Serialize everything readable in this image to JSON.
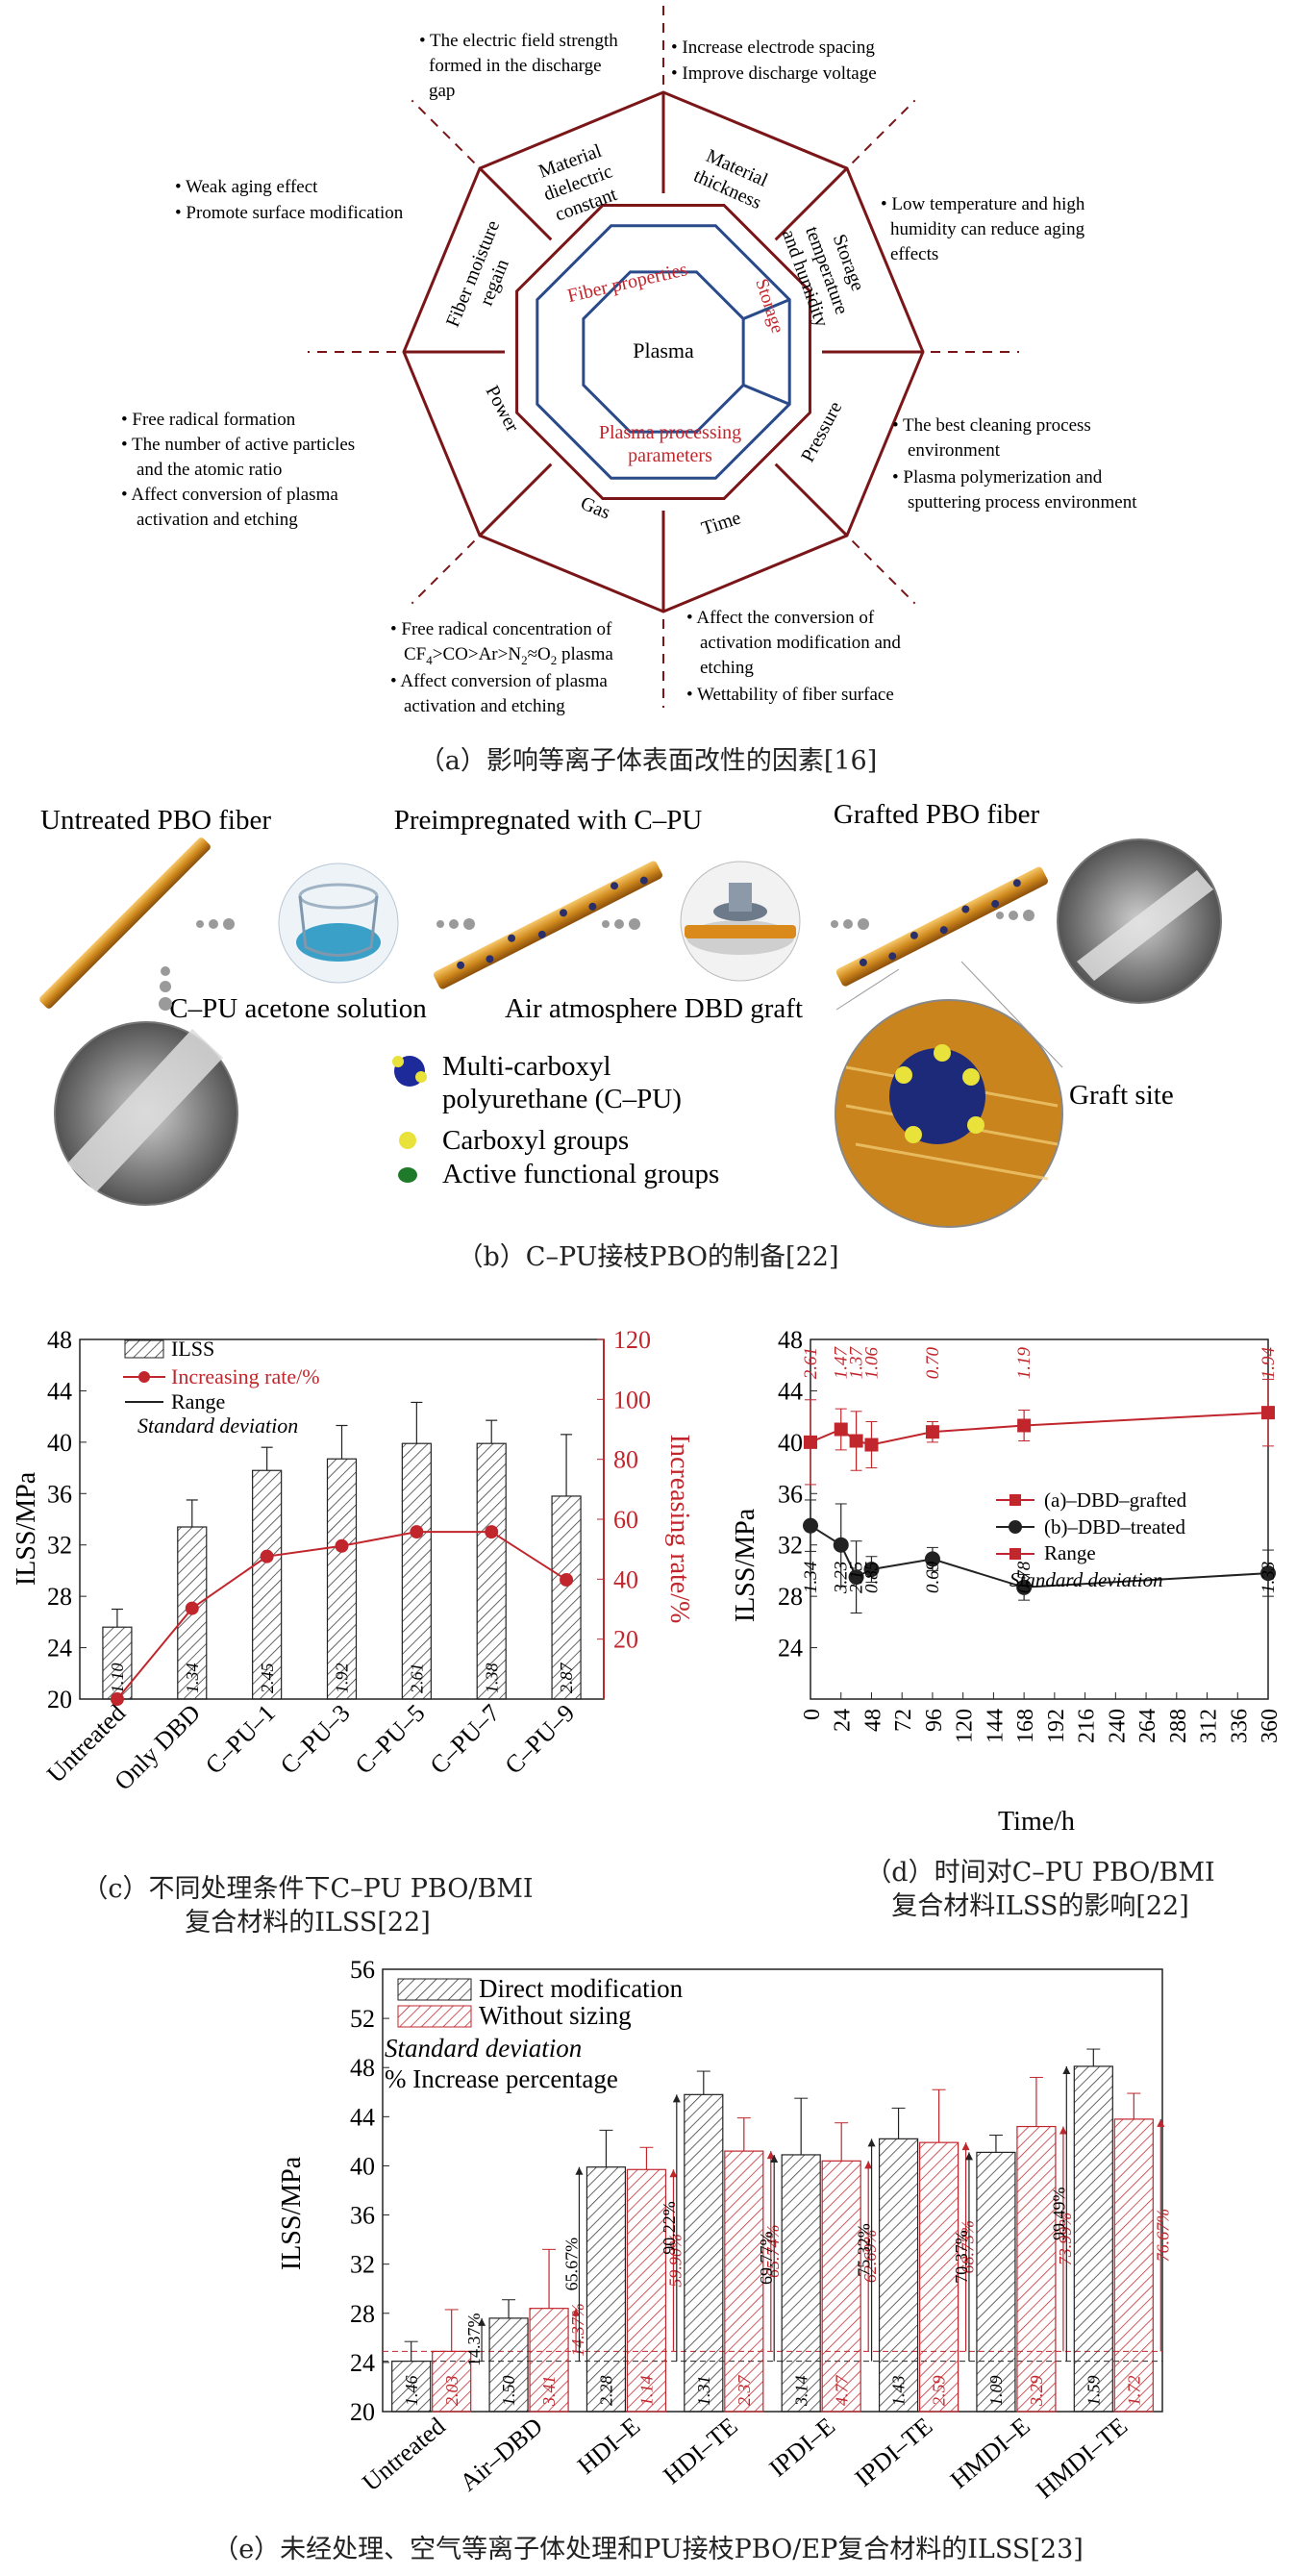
{
  "panel_a": {
    "caption": "（a）影响等离子体表面改性的因素[16]",
    "center": "Plasma",
    "inner_labels": [
      "Fiber properties",
      "Storage",
      "Plasma processing parameters"
    ],
    "segments": [
      "Material dielectric constant",
      "Material thickness",
      "Storage temperature and humidity",
      "Pressure",
      "Time",
      "Gas",
      "Power",
      "Fiber moisture regain"
    ],
    "notes": {
      "top_left": [
        "The electric field strength formed in the discharge gap"
      ],
      "top_right": [
        "Increase electrode spacing",
        "Improve discharge voltage"
      ],
      "right_top": [
        "Low temperature and high humidity can reduce aging effects"
      ],
      "right_bottom": [
        "The best cleaning process environment",
        "Plasma polymerization and sputtering process environment"
      ],
      "bottom_right": [
        "Affect the conversion of activation modification and etching",
        "Wettability of fiber surface"
      ],
      "bottom_left": [
        "Free radical concentration of CF4>CO>Ar>N2≈O2 plasma",
        "Affect conversion of plasma activation and etching"
      ],
      "left_bottom": [
        "Free radical formation",
        "The number of active particles and the atomic ratio",
        "Affect conversion of plasma activation and etching"
      ],
      "left_top": [
        "Weak aging effect",
        "Promote surface modification"
      ]
    }
  },
  "panel_b": {
    "caption": "（b）C–PU接枝PBO的制备[22]",
    "labels": [
      "Untreated PBO fiber",
      "Preimpregnated with C–PU",
      "Grafted PBO fiber",
      "C–PU acetone solution",
      "Air atmosphere DBD graft",
      "Graft site"
    ],
    "legend": [
      "Multi-carboxyl polyurethane (C–PU)",
      "Carboxyl groups",
      "Active functional groups"
    ]
  },
  "chart_data": [
    {
      "id": "c",
      "type": "bar",
      "caption": "（c）不同处理条件下C–PU PBO/BMI 复合材料的ILSS[22]",
      "categories": [
        "Untreated",
        "Only DBD",
        "C–PU–1",
        "C–PU–3",
        "C–PU–5",
        "C–PU–7",
        "C–PU–9"
      ],
      "series": [
        {
          "name": "ILSS",
          "values": [
            25.6,
            33.4,
            37.8,
            38.7,
            39.9,
            39.9,
            35.8
          ],
          "errors": [
            1.4,
            2.1,
            1.8,
            2.6,
            3.2,
            1.8,
            4.8
          ],
          "bar_labels": [
            "1.10",
            "1.34",
            "2.45",
            "1.92",
            "2.61",
            "1.38",
            "2.87"
          ]
        },
        {
          "name": "Increasing rate/%",
          "values": [
            0,
            30.3,
            47.6,
            51.1,
            55.8,
            55.8,
            39.8
          ]
        }
      ],
      "legend": [
        "ILSS",
        "Increasing rate/%",
        "Range",
        "Standard deviation"
      ],
      "ylabel": "ILSS/MPa",
      "y2label": "Increasing rate/%",
      "ylim": [
        20,
        48
      ],
      "yticks": [
        20,
        24,
        28,
        32,
        36,
        40,
        44,
        48
      ],
      "y2lim": [
        0,
        120
      ],
      "y2ticks": [
        20,
        40,
        60,
        80,
        100,
        120
      ]
    },
    {
      "id": "d",
      "type": "line",
      "caption": "（d）时间对C–PU PBO/BMI 复合材料ILSS的影响[22]",
      "series": [
        {
          "name": "(a)–DBD–grafted",
          "x": [
            0,
            24,
            36,
            48,
            96,
            168,
            360
          ],
          "values": [
            40.0,
            41.0,
            40.1,
            39.8,
            40.8,
            41.3,
            42.3
          ],
          "errors": [
            3.3,
            1.6,
            2.3,
            1.8,
            0.8,
            1.2,
            2.6
          ],
          "sd_labels": [
            "2.61",
            "1.47",
            "1.37",
            "1.06",
            "0.70",
            "1.19",
            "1.94"
          ]
        },
        {
          "name": "(b)–DBD–treated",
          "x": [
            0,
            24,
            36,
            48,
            96,
            168,
            360
          ],
          "values": [
            33.5,
            32.0,
            29.5,
            30.1,
            30.9,
            28.7,
            29.8
          ],
          "errors": [
            2.0,
            3.2,
            2.8,
            1.0,
            0.9,
            1.0,
            1.8
          ],
          "sd_labels": [
            "1.34",
            "3.23",
            "2.15",
            "0.85",
            "0.69",
            "0.78",
            "1.33"
          ]
        }
      ],
      "legend": [
        "(a)–DBD–grafted",
        "(b)–DBD–treated",
        "Range",
        "Standard deviation"
      ],
      "xlabel": "Time/h",
      "ylabel": "ILSS/MPa",
      "xlim": [
        0,
        360
      ],
      "xticks": [
        0,
        24,
        48,
        72,
        96,
        120,
        144,
        168,
        192,
        216,
        240,
        264,
        288,
        312,
        336,
        360
      ],
      "ylim": [
        20,
        48
      ],
      "yticks": [
        24,
        28,
        32,
        36,
        40,
        44,
        48
      ]
    },
    {
      "id": "e",
      "type": "bar",
      "caption": "（e）未经处理、空气等离子体处理和PU接枝PBO/EP复合材料的ILSS[23]",
      "categories": [
        "Untreated",
        "Air–DBD",
        "HDI–E",
        "HDI–TE",
        "IPDI–E",
        "IPDI–TE",
        "HMDI–E",
        "HMDI–TE"
      ],
      "series": [
        {
          "name": "Direct modification",
          "values": [
            24.1,
            27.6,
            39.9,
            45.8,
            40.9,
            42.2,
            41.1,
            48.1
          ],
          "errors": [
            1.6,
            1.5,
            3.0,
            1.9,
            4.6,
            2.5,
            1.4,
            1.4
          ],
          "bar_labels": [
            "1.46",
            "1.50",
            "2.28",
            "1.31",
            "3.14",
            "1.43",
            "1.09",
            "1.59"
          ],
          "increase_labels": [
            "",
            "14.37%",
            "65.67%",
            "90.22%",
            "69.77%",
            "75.32%",
            "70.37%",
            "99.49%"
          ]
        },
        {
          "name": "Without sizing",
          "values": [
            24.9,
            28.4,
            39.7,
            41.2,
            40.4,
            41.9,
            43.2,
            43.8
          ],
          "errors": [
            3.4,
            4.8,
            1.8,
            2.7,
            3.1,
            4.3,
            4.0,
            2.1
          ],
          "bar_labels": [
            "2.03",
            "3.41",
            "1.14",
            "2.37",
            "4.77",
            "2.59",
            "3.29",
            "1.72"
          ],
          "increase_labels": [
            "",
            "14.37%",
            "59.90%",
            "65.74%",
            "62.69%",
            "68.73%",
            "73.99%",
            "76.67%"
          ]
        }
      ],
      "legend": [
        "Direct modification",
        "Without sizing",
        "Standard deviation",
        "% Increase percentage"
      ],
      "ylabel": "ILSS/MPa",
      "ylim": [
        20,
        56
      ],
      "yticks": [
        20,
        24,
        28,
        32,
        36,
        40,
        44,
        48,
        52,
        56
      ]
    }
  ]
}
